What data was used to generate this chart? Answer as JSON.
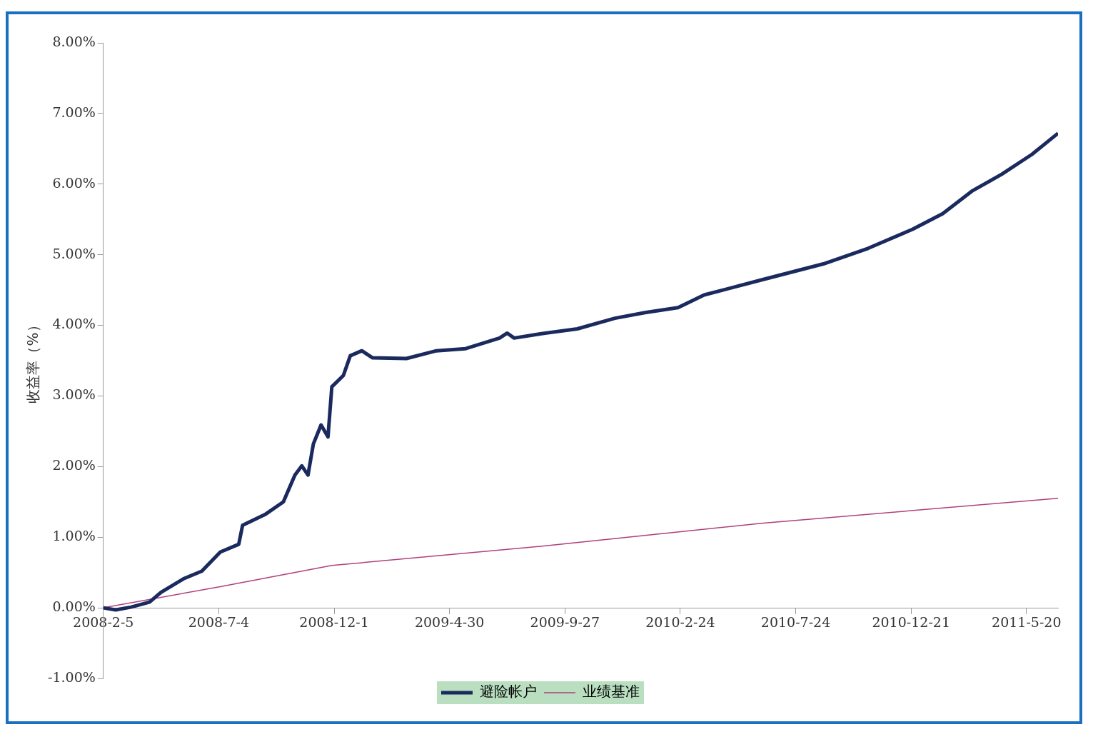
{
  "chart_data": {
    "type": "line",
    "ylabel": "收益率（%）",
    "ylim": [
      -1,
      8
    ],
    "yticks": [
      {
        "value": -1,
        "label": "-1.00%"
      },
      {
        "value": 0,
        "label": "0.00%"
      },
      {
        "value": 1,
        "label": "1.00%"
      },
      {
        "value": 2,
        "label": "2.00%"
      },
      {
        "value": 3,
        "label": "3.00%"
      },
      {
        "value": 4,
        "label": "4.00%"
      },
      {
        "value": 5,
        "label": "5.00%"
      },
      {
        "value": 6,
        "label": "6.00%"
      },
      {
        "value": 7,
        "label": "7.00%"
      },
      {
        "value": 8,
        "label": "8.00%"
      }
    ],
    "xlim": [
      "2008-02-05",
      "2011-06-30"
    ],
    "xticks": [
      {
        "value": "2008-02-05",
        "label": "2008-2-5"
      },
      {
        "value": "2008-07-04",
        "label": "2008-7-4"
      },
      {
        "value": "2008-12-01",
        "label": "2008-12-1"
      },
      {
        "value": "2009-04-30",
        "label": "2009-4-30"
      },
      {
        "value": "2009-09-27",
        "label": "2009-9-27"
      },
      {
        "value": "2010-02-24",
        "label": "2010-2-24"
      },
      {
        "value": "2010-07-24",
        "label": "2010-7-24"
      },
      {
        "value": "2010-12-21",
        "label": "2010-12-21"
      },
      {
        "value": "2011-05-20",
        "label": "2011-5-20"
      }
    ],
    "grid": false,
    "legend": "bottom",
    "marker": "none",
    "line_style": "solid",
    "series": [
      {
        "name": "避险帐户",
        "color": "#1b2a5e",
        "x": [
          "2008-02-05",
          "2008-02-21",
          "2008-03-12",
          "2008-04-05",
          "2008-04-20",
          "2008-05-19",
          "2008-06-12",
          "2008-07-06",
          "2008-07-30",
          "2008-08-04",
          "2008-09-02",
          "2008-09-26",
          "2008-10-11",
          "2008-10-20",
          "2008-10-28",
          "2008-11-04",
          "2008-11-14",
          "2008-11-23",
          "2008-11-28",
          "2008-12-13",
          "2008-12-22",
          "2009-01-06",
          "2009-01-20",
          "2009-03-05",
          "2009-04-13",
          "2009-05-21",
          "2009-07-04",
          "2009-07-14",
          "2009-07-23",
          "2009-08-26",
          "2009-10-13",
          "2009-12-01",
          "2010-01-09",
          "2010-02-21",
          "2010-03-27",
          "2010-06-12",
          "2010-08-29",
          "2010-10-26",
          "2010-12-23",
          "2011-01-31",
          "2011-03-10",
          "2011-04-18",
          "2011-05-27",
          "2011-06-30"
        ],
        "values": [
          0,
          -0.03,
          0.01,
          0.08,
          0.22,
          0.41,
          0.52,
          0.79,
          0.9,
          1.17,
          1.32,
          1.5,
          1.88,
          2.01,
          1.88,
          2.32,
          2.59,
          2.42,
          3.13,
          3.29,
          3.57,
          3.64,
          3.54,
          3.53,
          3.64,
          3.67,
          3.82,
          3.89,
          3.82,
          3.88,
          3.95,
          4.1,
          4.18,
          4.25,
          4.43,
          4.65,
          4.87,
          5.09,
          5.36,
          5.58,
          5.9,
          6.14,
          6.42,
          6.72
        ]
      },
      {
        "name": "业绩基准",
        "color": "#b0407e",
        "x": [
          "2008-02-05",
          "2008-07-06",
          "2008-11-28",
          "2009-08-26",
          "2010-06-12",
          "2011-06-30"
        ],
        "values": [
          0,
          0.3,
          0.6,
          0.87,
          1.2,
          1.55
        ]
      }
    ]
  }
}
